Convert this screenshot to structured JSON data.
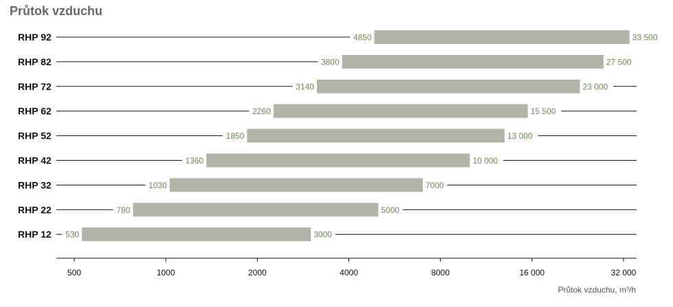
{
  "chart_data": {
    "type": "bar",
    "orientation": "horizontal-range",
    "title": "Průtok vzduchu",
    "xlabel": "Průtok vzduchu, m³/h",
    "ylabel": "",
    "x_scale": "log",
    "xlim": [
      400,
      40000
    ],
    "categories": [
      "RHP 92",
      "RHP 82",
      "RHP 72",
      "RHP 62",
      "RHP 52",
      "RHP 42",
      "RHP 32",
      "RHP 22",
      "RHP 12"
    ],
    "min_values": [
      4850,
      3800,
      3140,
      2260,
      1850,
      1360,
      1030,
      780,
      530
    ],
    "max_values": [
      33500,
      27500,
      23000,
      15500,
      13000,
      10000,
      7000,
      5000,
      3000
    ],
    "min_labels": [
      "4850",
      "3800",
      "3140",
      "2260",
      "1850",
      "1360",
      "1030",
      "780",
      "530"
    ],
    "max_labels": [
      "33 500",
      "27 500",
      "23 000",
      "15 500",
      "13 000",
      "10 000",
      "7000",
      "5000",
      "3000"
    ],
    "x_ticks": [
      500,
      1000,
      2000,
      4000,
      8000,
      16000,
      32000
    ],
    "x_tick_labels": [
      "500",
      "1000",
      "2000",
      "4000",
      "8000",
      "16 000",
      "32 000"
    ],
    "colors": {
      "bar": "#b0b5a8",
      "value_text": "#6b8a55",
      "line": "#111111"
    },
    "grid": false
  }
}
